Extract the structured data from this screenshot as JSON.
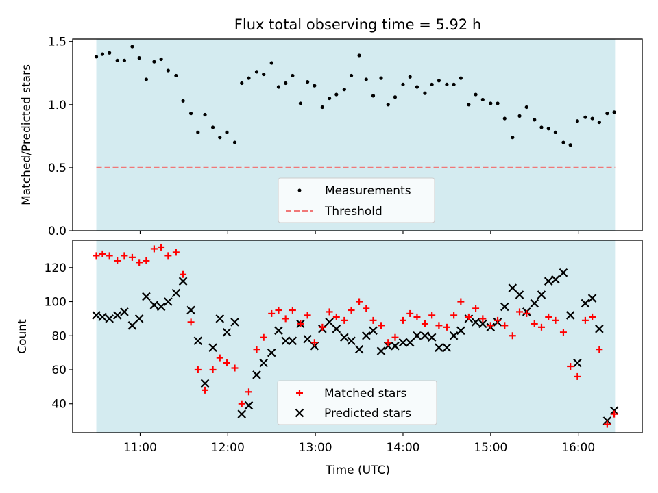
{
  "figure": {
    "title": "Flux total observing time = 5.92 h",
    "xlabel": "Time (UTC)",
    "xticks": [
      {
        "label": "11:00",
        "hours": 11.0
      },
      {
        "label": "12:00",
        "hours": 12.0
      },
      {
        "label": "13:00",
        "hours": 13.0
      },
      {
        "label": "14:00",
        "hours": 14.0
      },
      {
        "label": "15:00",
        "hours": 15.0
      },
      {
        "label": "16:00",
        "hours": 16.0
      }
    ],
    "xlim_hours": [
      10.23,
      16.73
    ],
    "span_hours": [
      10.5,
      16.42
    ],
    "colors": {
      "span": "#d4ebf0",
      "threshold": "#f07878",
      "matched": "#ff0000",
      "predicted": "#000000",
      "points": "#000000"
    }
  },
  "chart_data": [
    {
      "type": "scatter",
      "ylabel": "Matched/Predicted stars",
      "ylim": [
        0,
        1.52
      ],
      "yticks": [
        "0.0",
        "0.5",
        "1.0",
        "1.5"
      ],
      "threshold": 0.5,
      "legend": {
        "position": "lower-center",
        "entries": [
          "Measurements",
          "Threshold"
        ]
      },
      "series": [
        {
          "name": "Measurements",
          "points": [
            [
              10.5,
              1.38
            ],
            [
              10.57,
              1.4
            ],
            [
              10.65,
              1.41
            ],
            [
              10.74,
              1.35
            ],
            [
              10.82,
              1.35
            ],
            [
              10.91,
              1.46
            ],
            [
              10.99,
              1.37
            ],
            [
              11.07,
              1.2
            ],
            [
              11.16,
              1.34
            ],
            [
              11.24,
              1.36
            ],
            [
              11.32,
              1.27
            ],
            [
              11.41,
              1.23
            ],
            [
              11.49,
              1.03
            ],
            [
              11.58,
              0.93
            ],
            [
              11.66,
              0.78
            ],
            [
              11.74,
              0.92
            ],
            [
              11.83,
              0.82
            ],
            [
              11.91,
              0.74
            ],
            [
              11.99,
              0.78
            ],
            [
              12.08,
              0.7
            ],
            [
              12.16,
              1.17
            ],
            [
              12.24,
              1.21
            ],
            [
              12.33,
              1.26
            ],
            [
              12.41,
              1.24
            ],
            [
              12.5,
              1.33
            ],
            [
              12.58,
              1.14
            ],
            [
              12.66,
              1.17
            ],
            [
              12.74,
              1.23
            ],
            [
              12.83,
              1.01
            ],
            [
              12.91,
              1.18
            ],
            [
              12.99,
              1.15
            ],
            [
              13.08,
              0.98
            ],
            [
              13.16,
              1.05
            ],
            [
              13.24,
              1.08
            ],
            [
              13.33,
              1.12
            ],
            [
              13.41,
              1.23
            ],
            [
              13.5,
              1.39
            ],
            [
              13.58,
              1.2
            ],
            [
              13.66,
              1.07
            ],
            [
              13.75,
              1.21
            ],
            [
              13.83,
              1.0
            ],
            [
              13.91,
              1.06
            ],
            [
              14.0,
              1.16
            ],
            [
              14.08,
              1.22
            ],
            [
              14.16,
              1.14
            ],
            [
              14.25,
              1.09
            ],
            [
              14.33,
              1.16
            ],
            [
              14.41,
              1.19
            ],
            [
              14.5,
              1.16
            ],
            [
              14.58,
              1.16
            ],
            [
              14.66,
              1.21
            ],
            [
              14.75,
              1.0
            ],
            [
              14.83,
              1.08
            ],
            [
              14.91,
              1.04
            ],
            [
              15.0,
              1.01
            ],
            [
              15.08,
              1.01
            ],
            [
              15.16,
              0.89
            ],
            [
              15.25,
              0.74
            ],
            [
              15.33,
              0.91
            ],
            [
              15.41,
              0.98
            ],
            [
              15.5,
              0.88
            ],
            [
              15.58,
              0.82
            ],
            [
              15.66,
              0.81
            ],
            [
              15.74,
              0.78
            ],
            [
              15.83,
              0.7
            ],
            [
              15.91,
              0.68
            ],
            [
              15.99,
              0.87
            ],
            [
              16.08,
              0.9
            ],
            [
              16.16,
              0.89
            ],
            [
              16.24,
              0.86
            ],
            [
              16.33,
              0.93
            ],
            [
              16.41,
              0.94
            ]
          ]
        }
      ]
    },
    {
      "type": "scatter",
      "ylabel": "Count",
      "ylim": [
        23,
        136
      ],
      "yticks": [
        "40",
        "60",
        "80",
        "100",
        "120"
      ],
      "legend": {
        "position": "lower-center",
        "entries": [
          "Matched stars",
          "Predicted stars"
        ]
      },
      "series": [
        {
          "name": "Matched stars",
          "marker": "plus",
          "points": [
            [
              10.5,
              127
            ],
            [
              10.57,
              128
            ],
            [
              10.65,
              127
            ],
            [
              10.74,
              124
            ],
            [
              10.82,
              127
            ],
            [
              10.91,
              126
            ],
            [
              10.99,
              123
            ],
            [
              11.07,
              124
            ],
            [
              11.16,
              131
            ],
            [
              11.24,
              132
            ],
            [
              11.32,
              127
            ],
            [
              11.41,
              129
            ],
            [
              11.49,
              116
            ],
            [
              11.58,
              88
            ],
            [
              11.66,
              60
            ],
            [
              11.74,
              48
            ],
            [
              11.83,
              60
            ],
            [
              11.91,
              67
            ],
            [
              11.99,
              64
            ],
            [
              12.08,
              61
            ],
            [
              12.16,
              40
            ],
            [
              12.24,
              47
            ],
            [
              12.33,
              72
            ],
            [
              12.41,
              79
            ],
            [
              12.5,
              93
            ],
            [
              12.58,
              95
            ],
            [
              12.66,
              90
            ],
            [
              12.74,
              95
            ],
            [
              12.83,
              87
            ],
            [
              12.91,
              92
            ],
            [
              12.99,
              76
            ],
            [
              13.08,
              85
            ],
            [
              13.16,
              94
            ],
            [
              13.24,
              91
            ],
            [
              13.33,
              89
            ],
            [
              13.41,
              95
            ],
            [
              13.5,
              100
            ],
            [
              13.58,
              96
            ],
            [
              13.66,
              89
            ],
            [
              13.75,
              86
            ],
            [
              13.83,
              76
            ],
            [
              13.91,
              79
            ],
            [
              14.0,
              89
            ],
            [
              14.08,
              93
            ],
            [
              14.16,
              91
            ],
            [
              14.25,
              87
            ],
            [
              14.33,
              92
            ],
            [
              14.41,
              86
            ],
            [
              14.5,
              85
            ],
            [
              14.58,
              92
            ],
            [
              14.66,
              100
            ],
            [
              14.75,
              91
            ],
            [
              14.83,
              96
            ],
            [
              14.91,
              90
            ],
            [
              15.0,
              86
            ],
            [
              15.08,
              89
            ],
            [
              15.16,
              86
            ],
            [
              15.25,
              80
            ],
            [
              15.33,
              94
            ],
            [
              15.41,
              93
            ],
            [
              15.5,
              87
            ],
            [
              15.58,
              85
            ],
            [
              15.66,
              91
            ],
            [
              15.74,
              89
            ],
            [
              15.83,
              82
            ],
            [
              15.91,
              62
            ],
            [
              15.99,
              56
            ],
            [
              16.08,
              89
            ],
            [
              16.16,
              91
            ],
            [
              16.24,
              72
            ],
            [
              16.33,
              28
            ],
            [
              16.41,
              34
            ]
          ]
        },
        {
          "name": "Predicted stars",
          "marker": "x",
          "points": [
            [
              10.5,
              92
            ],
            [
              10.57,
              91
            ],
            [
              10.65,
              90
            ],
            [
              10.74,
              92
            ],
            [
              10.82,
              94
            ],
            [
              10.91,
              86
            ],
            [
              10.99,
              90
            ],
            [
              11.07,
              103
            ],
            [
              11.16,
              98
            ],
            [
              11.24,
              97
            ],
            [
              11.32,
              100
            ],
            [
              11.41,
              105
            ],
            [
              11.49,
              112
            ],
            [
              11.58,
              95
            ],
            [
              11.66,
              77
            ],
            [
              11.74,
              52
            ],
            [
              11.83,
              73
            ],
            [
              11.91,
              90
            ],
            [
              11.99,
              82
            ],
            [
              12.08,
              88
            ],
            [
              12.16,
              34
            ],
            [
              12.24,
              39
            ],
            [
              12.33,
              57
            ],
            [
              12.41,
              64
            ],
            [
              12.5,
              70
            ],
            [
              12.58,
              83
            ],
            [
              12.66,
              77
            ],
            [
              12.74,
              77
            ],
            [
              12.83,
              87
            ],
            [
              12.91,
              78
            ],
            [
              12.99,
              74
            ],
            [
              13.08,
              84
            ],
            [
              13.16,
              88
            ],
            [
              13.24,
              84
            ],
            [
              13.33,
              79
            ],
            [
              13.41,
              77
            ],
            [
              13.5,
              72
            ],
            [
              13.58,
              80
            ],
            [
              13.66,
              83
            ],
            [
              13.75,
              71
            ],
            [
              13.83,
              74
            ],
            [
              13.91,
              74
            ],
            [
              14.0,
              76
            ],
            [
              14.08,
              76
            ],
            [
              14.16,
              80
            ],
            [
              14.25,
              80
            ],
            [
              14.33,
              79
            ],
            [
              14.41,
              73
            ],
            [
              14.5,
              73
            ],
            [
              14.58,
              80
            ],
            [
              14.66,
              83
            ],
            [
              14.75,
              90
            ],
            [
              14.83,
              88
            ],
            [
              14.91,
              87
            ],
            [
              15.0,
              85
            ],
            [
              15.08,
              88
            ],
            [
              15.16,
              97
            ],
            [
              15.25,
              108
            ],
            [
              15.33,
              104
            ],
            [
              15.41,
              94
            ],
            [
              15.5,
              99
            ],
            [
              15.58,
              104
            ],
            [
              15.66,
              112
            ],
            [
              15.74,
              113
            ],
            [
              15.83,
              117
            ],
            [
              15.91,
              92
            ],
            [
              15.99,
              64
            ],
            [
              16.08,
              99
            ],
            [
              16.16,
              102
            ],
            [
              16.24,
              84
            ],
            [
              16.33,
              30
            ],
            [
              16.41,
              36
            ]
          ]
        }
      ]
    }
  ]
}
